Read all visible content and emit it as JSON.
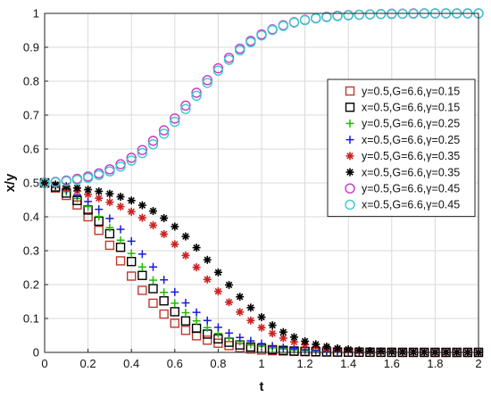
{
  "chart_data": {
    "type": "scatter",
    "title": "",
    "xlabel": "t",
    "ylabel": "x/y",
    "xlim": [
      0,
      2
    ],
    "ylim": [
      0,
      1
    ],
    "xticks": [
      "0",
      "0.2",
      "0.4",
      "0.6",
      "0.8",
      "1",
      "1.2",
      "1.4",
      "1.6",
      "1.8",
      "2"
    ],
    "yticks": [
      "0",
      "0.1",
      "0.2",
      "0.3",
      "0.4",
      "0.5",
      "0.6",
      "0.7",
      "0.8",
      "0.9",
      "1"
    ],
    "grid": true,
    "legend_position": "right",
    "x": [
      0,
      0.05,
      0.1,
      0.15,
      0.2,
      0.25,
      0.3,
      0.35,
      0.4,
      0.45,
      0.5,
      0.55,
      0.6,
      0.65,
      0.7,
      0.75,
      0.8,
      0.85,
      0.9,
      0.95,
      1,
      1.05,
      1.1,
      1.15,
      1.2,
      1.25,
      1.3,
      1.35,
      1.4,
      1.45,
      1.5,
      1.55,
      1.6,
      1.65,
      1.7,
      1.75,
      1.8,
      1.85,
      1.9,
      1.95,
      2
    ],
    "series": [
      {
        "name": "y=0.5,G=6.6,γ=0.15",
        "marker": "square",
        "color": "#c0392b",
        "values": [
          0.5,
          0.485,
          0.463,
          0.435,
          0.4,
          0.36,
          0.316,
          0.27,
          0.225,
          0.183,
          0.145,
          0.113,
          0.086,
          0.065,
          0.049,
          0.036,
          0.027,
          0.02,
          0.014,
          0.01,
          0.007,
          0.005,
          0.004,
          0.003,
          0.002,
          0.0015,
          0.001,
          0.0008,
          0.0006,
          0.0004,
          0.0003,
          0.0002,
          0.0002,
          0.0001,
          0.0001,
          0.0001,
          0.0001,
          0,
          0,
          0,
          0
        ]
      },
      {
        "name": "x=0.5,G=6.6,γ=0.15",
        "marker": "square",
        "color": "#000000",
        "values": [
          0.5,
          0.488,
          0.47,
          0.448,
          0.42,
          0.387,
          0.35,
          0.31,
          0.268,
          0.227,
          0.188,
          0.152,
          0.12,
          0.093,
          0.071,
          0.054,
          0.04,
          0.03,
          0.022,
          0.016,
          0.012,
          0.008,
          0.006,
          0.004,
          0.003,
          0.002,
          0.0015,
          0.001,
          0.0007,
          0.0005,
          0.0004,
          0.0003,
          0.0002,
          0.0001,
          0.0001,
          0.0001,
          0,
          0,
          0,
          0,
          0
        ]
      },
      {
        "name": "y=0.5,G=6.6,γ=0.25",
        "marker": "plus",
        "color": "#22bb00",
        "values": [
          0.5,
          0.489,
          0.474,
          0.454,
          0.43,
          0.401,
          0.368,
          0.331,
          0.292,
          0.252,
          0.213,
          0.177,
          0.145,
          0.117,
          0.093,
          0.073,
          0.056,
          0.043,
          0.032,
          0.024,
          0.018,
          0.013,
          0.01,
          0.007,
          0.005,
          0.004,
          0.003,
          0.002,
          0.0015,
          0.001,
          0.0008,
          0.0006,
          0.0004,
          0.0003,
          0.0002,
          0.0001,
          0.0001,
          0.0001,
          0,
          0,
          0
        ]
      },
      {
        "name": "x=0.5,G=6.6,γ=0.25",
        "marker": "plus",
        "color": "#1a1adb",
        "values": [
          0.5,
          0.491,
          0.479,
          0.464,
          0.445,
          0.422,
          0.395,
          0.363,
          0.328,
          0.29,
          0.252,
          0.214,
          0.178,
          0.146,
          0.118,
          0.094,
          0.074,
          0.057,
          0.044,
          0.034,
          0.026,
          0.019,
          0.014,
          0.011,
          0.008,
          0.006,
          0.004,
          0.003,
          0.002,
          0.0015,
          0.001,
          0.0008,
          0.0006,
          0.0004,
          0.0003,
          0.0002,
          0.0001,
          0.0001,
          0,
          0,
          0
        ]
      },
      {
        "name": "y=0.5,G=6.6,γ=0.35",
        "marker": "asterisk",
        "color": "#cc2222",
        "values": [
          0.5,
          0.493,
          0.485,
          0.476,
          0.466,
          0.455,
          0.443,
          0.43,
          0.415,
          0.397,
          0.375,
          0.349,
          0.319,
          0.286,
          0.251,
          0.215,
          0.18,
          0.148,
          0.119,
          0.094,
          0.073,
          0.056,
          0.042,
          0.031,
          0.023,
          0.017,
          0.012,
          0.009,
          0.006,
          0.004,
          0.003,
          0.002,
          0.0015,
          0.001,
          0.0007,
          0.0005,
          0.0003,
          0.0002,
          0.0001,
          0.0001,
          0
        ]
      },
      {
        "name": "x=0.5,G=6.6,γ=0.35",
        "marker": "asterisk",
        "color": "#000000",
        "values": [
          0.5,
          0.495,
          0.49,
          0.485,
          0.48,
          0.475,
          0.468,
          0.459,
          0.448,
          0.434,
          0.417,
          0.396,
          0.371,
          0.342,
          0.309,
          0.273,
          0.236,
          0.199,
          0.164,
          0.132,
          0.104,
          0.08,
          0.06,
          0.045,
          0.033,
          0.024,
          0.017,
          0.012,
          0.009,
          0.006,
          0.004,
          0.003,
          0.002,
          0.0015,
          0.001,
          0.0007,
          0.0005,
          0.0003,
          0.0002,
          0.0001,
          0
        ]
      },
      {
        "name": "y=0.5,G=6.6,γ=0.45",
        "marker": "circle",
        "color": "#cc33cc",
        "values": [
          0.5,
          0.503,
          0.507,
          0.512,
          0.519,
          0.528,
          0.54,
          0.555,
          0.574,
          0.597,
          0.624,
          0.655,
          0.69,
          0.728,
          0.766,
          0.803,
          0.838,
          0.869,
          0.896,
          0.919,
          0.938,
          0.953,
          0.965,
          0.974,
          0.981,
          0.986,
          0.99,
          0.993,
          0.995,
          0.996,
          0.997,
          0.998,
          0.999,
          0.999,
          1,
          1,
          1,
          1,
          1,
          1,
          1
        ]
      },
      {
        "name": "x=0.5,G=6.6,γ=0.45",
        "marker": "circle",
        "color": "#33cccc",
        "values": [
          0.5,
          0.502,
          0.505,
          0.509,
          0.515,
          0.523,
          0.534,
          0.548,
          0.566,
          0.588,
          0.614,
          0.645,
          0.68,
          0.718,
          0.757,
          0.795,
          0.831,
          0.863,
          0.891,
          0.915,
          0.935,
          0.951,
          0.963,
          0.973,
          0.98,
          0.985,
          0.989,
          0.992,
          0.994,
          0.996,
          0.997,
          0.998,
          0.998,
          0.999,
          0.999,
          1,
          1,
          1,
          1,
          1,
          1
        ]
      }
    ]
  }
}
